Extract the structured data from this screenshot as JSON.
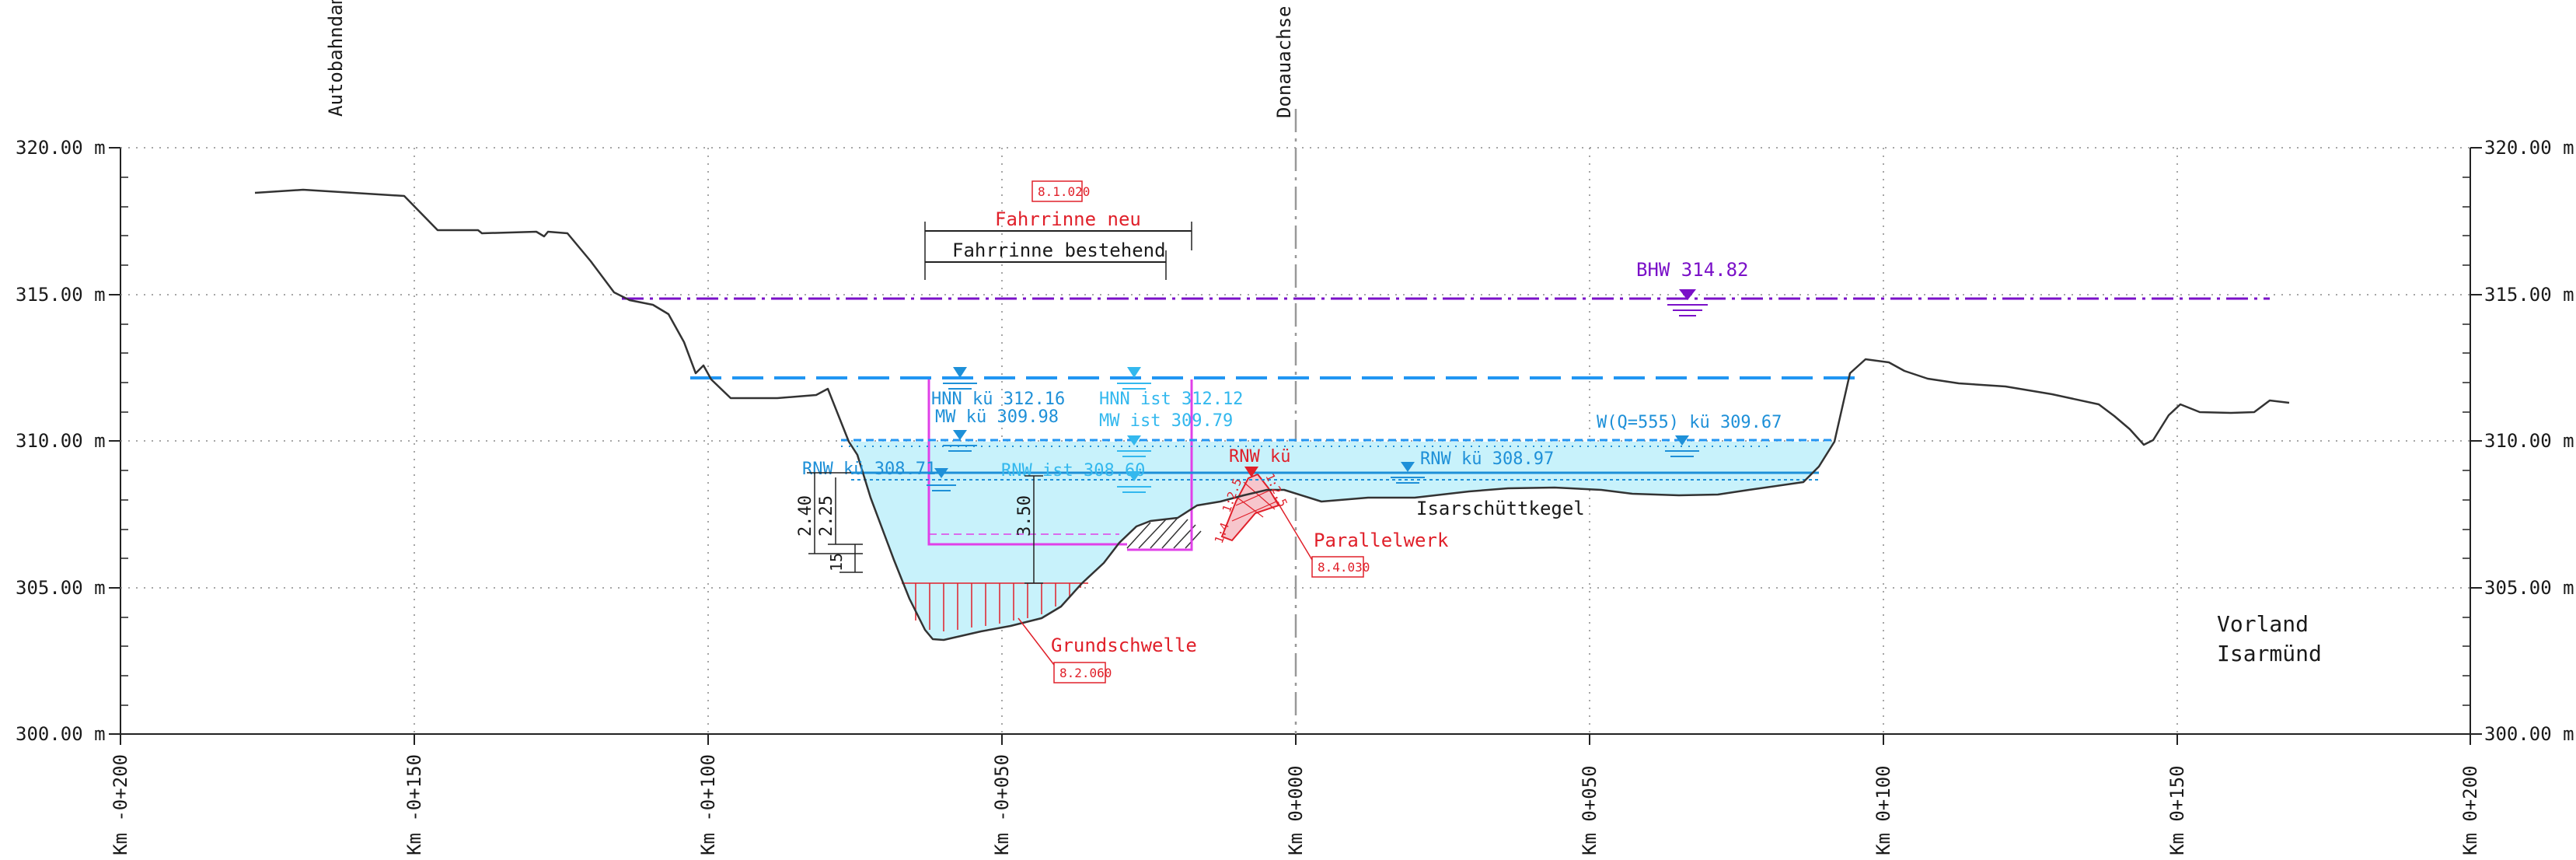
{
  "y_axis_labels": [
    "320.00 m",
    "315.00 m",
    "310.00 m",
    "305.00 m",
    "300.00 m"
  ],
  "x_axis_labels": [
    "Km -0+200",
    "Km -0+150",
    "Km -0+100",
    "Km -0+050",
    "Km 0+000",
    "Km 0+050",
    "Km 0+100",
    "Km 0+150",
    "Km 0+200"
  ],
  "vertical_labels": {
    "autobahn": "Autobahndam",
    "donau": "Donauachse"
  },
  "water_levels": {
    "bhw": "BHW 314.82",
    "hnn_kue": "HNN kü 312.16",
    "hnn_ist": "HNN ist 312.12",
    "mw_kue": "MW kü 309.98",
    "mw_ist": "MW ist 309.79",
    "wq": "W(Q=555) kü 309.67",
    "rnw_kue_left": "RNW kü 308.71",
    "rnw_ist": "RNW ist 308.60",
    "rnw_kue_mid": "RNW kü 308.97",
    "rnw_kue_red": "RNW kü"
  },
  "annotations": {
    "ref_fahrrinne": "8.1.020",
    "fahrrinne_neu": "Fahrrinne neu",
    "fahrrinne_bestehend": "Fahrrinne bestehend",
    "parallelwerk": "Parallelwerk",
    "ref_parallelwerk": "8.4.030",
    "grundschwelle": "Grundschwelle",
    "ref_grundschwelle": "8.2.060",
    "isarschuttkegel": "Isarschüttkegel",
    "vorland_line1": "Vorland",
    "vorland_line2": "Isarmünd"
  },
  "dimensions": {
    "d240": "2.40",
    "d225": "2.25",
    "d350": "3.50",
    "d15": "15",
    "slope1": "1:4",
    "slope2": "1:2.5",
    "slope3": "1:2.5"
  },
  "colors": {
    "water_fill": "#c8f2fb",
    "hnn": "#2196f3",
    "mw": "#1e90d8",
    "bhw": "#7a10c8",
    "accent_red": "#e0202a",
    "channel": "#e040e8",
    "terrain": "#333333"
  }
}
